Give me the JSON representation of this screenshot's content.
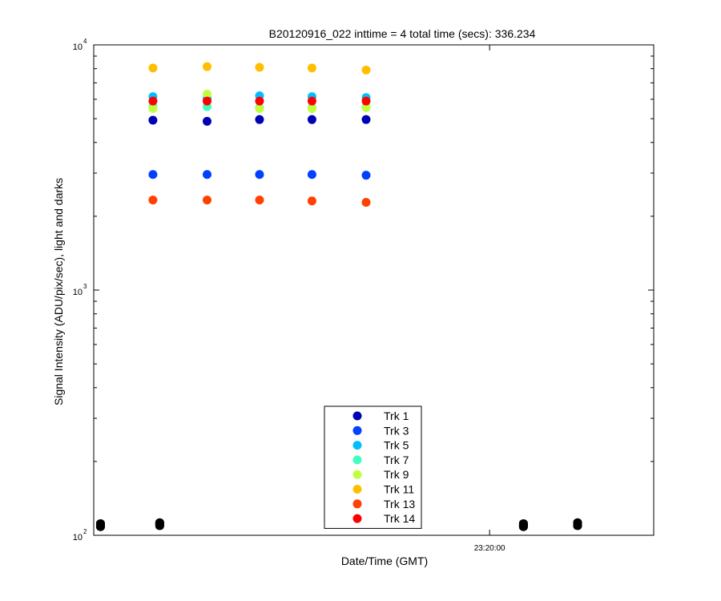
{
  "chart_data": {
    "type": "scatter",
    "title": "B20120916_022 inttime = 4 total time (secs): 336.234",
    "xlabel": "Date/Time (GMT)",
    "ylabel": "Signal Intensity (ADU/pix/sec), light and darks",
    "y_scale": "log",
    "ylim": [
      100,
      10000
    ],
    "xlim": [
      "23:16:06",
      "23:21:37"
    ],
    "x_tick_labels": [
      "23:20:00"
    ],
    "y_tick_labels": [
      {
        "base": "10",
        "exp": "2"
      },
      {
        "base": "10",
        "exp": "3"
      },
      {
        "base": "10",
        "exp": "4"
      }
    ],
    "grid": false,
    "legend_position": "bottom-center",
    "series": [
      {
        "name": "Trk 1",
        "color": "#0000b4",
        "x": [
          "23:16:41",
          "23:17:13",
          "23:17:44",
          "23:18:15",
          "23:18:47"
        ],
        "y": [
          4930,
          4880,
          4960,
          4960,
          4960
        ]
      },
      {
        "name": "Trk 3",
        "color": "#0040ff",
        "x": [
          "23:16:41",
          "23:17:13",
          "23:17:44",
          "23:18:15",
          "23:18:47"
        ],
        "y": [
          2960,
          2960,
          2960,
          2960,
          2940
        ]
      },
      {
        "name": "Trk 5",
        "color": "#00bfff",
        "x": [
          "23:16:41",
          "23:17:13",
          "23:17:44",
          "23:18:15",
          "23:18:47"
        ],
        "y": [
          6150,
          6050,
          6200,
          6150,
          6100
        ]
      },
      {
        "name": "Trk 7",
        "color": "#40ffbf",
        "x": [
          "23:16:41",
          "23:17:13",
          "23:17:44",
          "23:18:15",
          "23:18:47"
        ],
        "y": [
          5600,
          5600,
          5550,
          5550,
          5600
        ]
      },
      {
        "name": "Trk 9",
        "color": "#bfff40",
        "x": [
          "23:16:41",
          "23:17:13",
          "23:17:44",
          "23:18:15",
          "23:18:47"
        ],
        "y": [
          5500,
          6300,
          5500,
          5500,
          5550
        ]
      },
      {
        "name": "Trk 11",
        "color": "#ffbf00",
        "x": [
          "23:16:41",
          "23:17:13",
          "23:17:44",
          "23:18:15",
          "23:18:47"
        ],
        "y": [
          8050,
          8150,
          8100,
          8050,
          7900
        ]
      },
      {
        "name": "Trk 13",
        "color": "#ff4000",
        "x": [
          "23:16:41",
          "23:17:13",
          "23:17:44",
          "23:18:15",
          "23:18:47"
        ],
        "y": [
          2330,
          2330,
          2330,
          2310,
          2280
        ]
      },
      {
        "name": "Trk 14",
        "color": "#ff0000",
        "x": [
          "23:16:41",
          "23:17:13",
          "23:17:44",
          "23:18:15",
          "23:18:47"
        ],
        "y": [
          5900,
          5900,
          5900,
          5900,
          5900
        ]
      }
    ],
    "dark_frames": {
      "color": "#000000",
      "x": [
        "23:16:10",
        "23:16:10",
        "23:16:10",
        "23:16:10",
        "23:16:10",
        "23:16:10",
        "23:16:10",
        "23:16:10",
        "23:16:45",
        "23:16:45",
        "23:16:45",
        "23:16:45",
        "23:16:45",
        "23:16:45",
        "23:16:45",
        "23:16:45",
        "23:20:20",
        "23:20:20",
        "23:20:20",
        "23:20:20",
        "23:20:20",
        "23:20:20",
        "23:20:20",
        "23:20:20",
        "23:20:52",
        "23:20:52",
        "23:20:52",
        "23:20:52",
        "23:20:52",
        "23:20:52",
        "23:20:52",
        "23:20:52"
      ],
      "y": [
        108,
        109,
        110,
        111,
        112,
        110,
        109,
        111,
        109,
        110,
        111,
        112,
        113,
        111,
        110,
        112,
        108,
        109,
        110,
        111,
        112,
        110,
        109,
        111,
        109,
        110,
        111,
        112,
        113,
        111,
        110,
        112
      ]
    }
  }
}
